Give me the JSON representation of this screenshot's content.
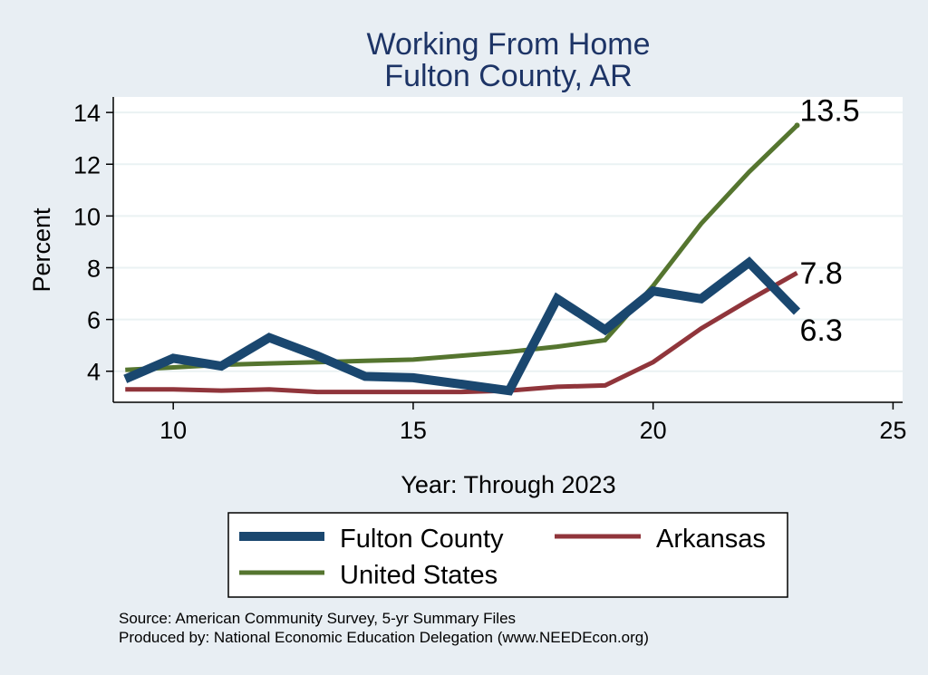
{
  "chart_data": {
    "type": "line",
    "title": "Working From Home",
    "subtitle": "Fulton County, AR",
    "xlabel": "Year: Through 2023",
    "ylabel": "Percent",
    "xlim": [
      8.75,
      25.2
    ],
    "ylim": [
      2.8,
      14.6
    ],
    "xticks": [
      10,
      15,
      20,
      25
    ],
    "yticks": [
      4,
      6,
      8,
      10,
      12,
      14
    ],
    "grid": true,
    "legend_position": "bottom",
    "x": [
      9,
      10,
      11,
      12,
      13,
      14,
      15,
      16,
      17,
      18,
      19,
      20,
      21,
      22,
      23
    ],
    "series": [
      {
        "name": "Fulton County",
        "color": "#1a476f",
        "values": [
          3.7,
          4.5,
          4.2,
          5.3,
          4.6,
          3.8,
          3.75,
          3.5,
          3.25,
          6.8,
          5.6,
          7.1,
          6.8,
          8.2,
          6.3
        ],
        "end_label": "6.3"
      },
      {
        "name": "Arkansas",
        "color": "#90353b",
        "values": [
          3.3,
          3.3,
          3.25,
          3.3,
          3.2,
          3.2,
          3.2,
          3.2,
          3.25,
          3.4,
          3.45,
          4.35,
          5.65,
          6.75,
          7.8
        ],
        "end_label": "7.8"
      },
      {
        "name": "United States",
        "color": "#55752f",
        "values": [
          4.05,
          4.15,
          4.25,
          4.3,
          4.35,
          4.4,
          4.45,
          4.6,
          4.75,
          4.95,
          5.2,
          7.3,
          9.7,
          11.7,
          13.5
        ],
        "end_label": "13.5"
      }
    ],
    "notes": [
      "Source: American Community Survey, 5-yr Summary Files",
      "Produced by: National Economic Education Delegation (www.NEEDEcon.org)"
    ]
  }
}
